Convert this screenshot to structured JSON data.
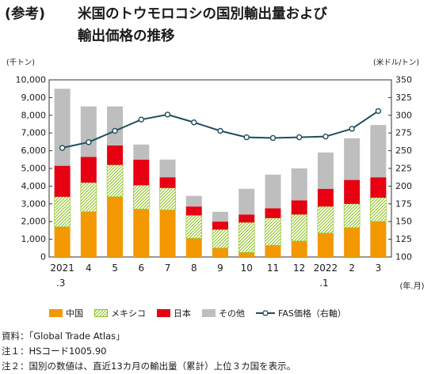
{
  "title": {
    "prefix": "(参考)",
    "line1": "米国のトウモロコシの国別輸出量および",
    "line2": "輸出価格の推移"
  },
  "units": {
    "left": "(千トン)",
    "right": "(米ドル/トン)",
    "x": "(年.月)"
  },
  "notes": [
    "資料：「Global Trade Atlas」",
    "注１：HSコード1005.90",
    "注２：国別の数値は、直近13カ月の輸出量（累計）上位３カ国を表示。"
  ],
  "colors": {
    "china": "#F39800",
    "mexico": "#8DC21F",
    "japan": "#E60012",
    "other": "#BEBEBE",
    "fas": "#1F4E5F"
  },
  "chart_data": {
    "type": "bar",
    "stacked": true,
    "categories": [
      "2021\n.3",
      "4",
      "5",
      "6",
      "7",
      "8",
      "9",
      "10",
      "11",
      "12",
      "2022\n.1",
      "2",
      "3"
    ],
    "series": [
      {
        "name": "中国",
        "values": [
          1700,
          2550,
          3400,
          2700,
          2650,
          1050,
          500,
          250,
          650,
          900,
          1350,
          1650,
          2000
        ]
      },
      {
        "name": "メキシコ",
        "values": [
          1700,
          1650,
          1800,
          1350,
          1250,
          1300,
          1050,
          1700,
          1550,
          1500,
          1500,
          1350,
          1350
        ]
      },
      {
        "name": "日本",
        "values": [
          1750,
          1450,
          1100,
          1450,
          600,
          500,
          450,
          450,
          550,
          800,
          1000,
          1350,
          1150
        ]
      },
      {
        "name": "その他",
        "values": [
          4350,
          2850,
          2200,
          850,
          1000,
          600,
          550,
          1450,
          1900,
          1800,
          2050,
          2350,
          2950
        ]
      }
    ],
    "line_series": {
      "name": "FAS価格（右軸）",
      "axis": "right",
      "values": [
        254,
        262,
        278,
        294,
        301,
        290,
        278,
        269,
        268,
        269,
        270,
        281,
        306
      ]
    },
    "y_left": {
      "min": 0,
      "max": 10000,
      "step": 1000
    },
    "y_right": {
      "min": 100,
      "max": 350,
      "step": 25
    },
    "grid": false,
    "legend_position": "bottom"
  }
}
